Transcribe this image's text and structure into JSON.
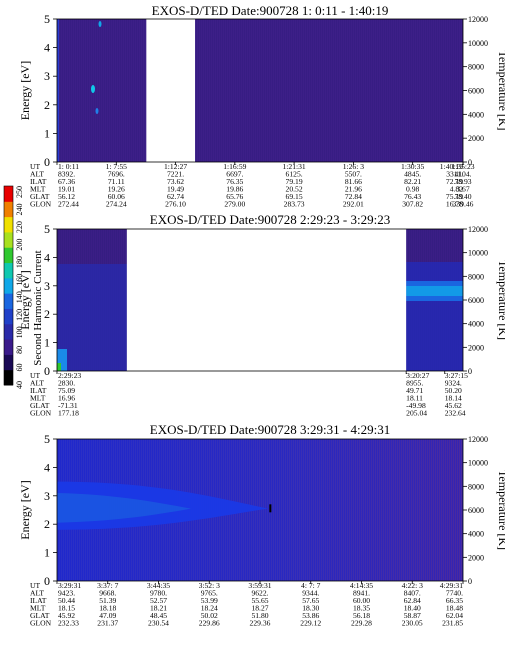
{
  "energy_label": "Energy [eV]",
  "temperature_label": "Temperature [K]",
  "colorbar": {
    "label": "Second Harmonic Current",
    "ticks": [
      "40",
      "60",
      "80",
      "100",
      "120",
      "140",
      "160",
      "180",
      "200",
      "220",
      "240",
      "250"
    ],
    "colors": [
      "#000000",
      "#1a0a55",
      "#3a1a8a",
      "#2a2aa8",
      "#2040c8",
      "#1a66e0",
      "#10a8e8",
      "#10c8b0",
      "#30c830",
      "#a8e020",
      "#f0e000",
      "#f08000",
      "#e80000"
    ]
  },
  "ephemeris_labels": [
    "UT",
    "ALT",
    "ILAT",
    "MLT",
    "GLAT",
    "GLON"
  ],
  "chart_data": [
    {
      "type": "heatmap",
      "title": "EXOS-D/TED   Date:900728   1: 0:11 - 1:40:19",
      "ylim": [
        0,
        5
      ],
      "y2lim": [
        0,
        12000
      ],
      "yticks": [
        0,
        1,
        2,
        3,
        4,
        5
      ],
      "y2ticks": [
        0,
        2000,
        4000,
        6000,
        8000,
        10000,
        12000
      ],
      "data_gaps": [
        [
          0.22,
          0.34
        ]
      ],
      "ephemeris": {
        "x_frac": [
          0.0,
          0.146,
          0.292,
          0.438,
          0.584,
          0.73,
          0.876,
          1.0,
          1.0
        ],
        "UT": [
          "1: 0:11",
          "1: 7:55",
          "1:12:27",
          "1:16:59",
          "1:21:31",
          "1:26: 3",
          "1:30:35",
          "1:35:23",
          "1:40:19"
        ],
        "ALT": [
          "8392.",
          "7696.",
          "7221.",
          "6697.",
          "6125.",
          "5507.",
          "4845.",
          "4104.",
          "3311."
        ],
        "ILAT": [
          "67.36",
          "71.11",
          "73.62",
          "76.35",
          "79.19",
          "81.66",
          "82.21",
          "78.93",
          "72.19"
        ],
        "MLT": [
          "19.01",
          "19.26",
          "19.49",
          "19.86",
          "20.52",
          "21.96",
          "0.98",
          "3.67",
          "4.82"
        ],
        "GLAT": [
          "56.12",
          "60.06",
          "62.74",
          "65.76",
          "69.15",
          "72.84",
          "76.43",
          "78.40",
          "75.19"
        ],
        "GLON": [
          "272.44",
          "274.24",
          "276.10",
          "279.00",
          "283.73",
          "292.01",
          "307.82",
          "339.46",
          "16.78"
        ]
      }
    },
    {
      "type": "heatmap",
      "title": "EXOS-D/TED   Date:900728   2:29:23 - 3:29:23",
      "ylim": [
        0,
        5
      ],
      "y2lim": [
        0,
        12000
      ],
      "yticks": [
        0,
        1,
        2,
        3,
        4,
        5
      ],
      "y2ticks": [
        0,
        2000,
        4000,
        6000,
        8000,
        10000,
        12000
      ],
      "data_gaps": [
        [
          0.172,
          0.86
        ]
      ],
      "ephemeris": {
        "x_frac": [
          0.0,
          0.86,
          0.955
        ],
        "UT": [
          "2:29:23",
          "3:20:27",
          "3:27:15"
        ],
        "ALT": [
          "2830.",
          "8955.",
          "9324."
        ],
        "ILAT": [
          "75.09",
          "49.71",
          "50.20"
        ],
        "MLT": [
          "16.96",
          "18.11",
          "18.14"
        ],
        "GLAT": [
          "-71.31",
          "-49.98",
          "45.62"
        ],
        "GLON": [
          "177.18",
          "205.04",
          "232.64"
        ]
      }
    },
    {
      "type": "heatmap",
      "title": "EXOS-D/TED   Date:900728   3:29:31 - 4:29:31",
      "ylim": [
        0,
        5
      ],
      "y2lim": [
        0,
        12000
      ],
      "yticks": [
        0,
        1,
        2,
        3,
        4,
        5
      ],
      "y2ticks": [
        0,
        2000,
        4000,
        6000,
        8000,
        10000,
        12000
      ],
      "data_gaps": [],
      "ephemeris": {
        "x_frac": [
          0.0,
          0.125,
          0.25,
          0.375,
          0.5,
          0.625,
          0.75,
          0.875,
          1.0
        ],
        "UT": [
          "3:29:31",
          "3:37: 7",
          "3:44:35",
          "3:52: 3",
          "3:59:31",
          "4: 7: 7",
          "4:14:35",
          "4:22: 3",
          "4:29:31"
        ],
        "ALT": [
          "9423.",
          "9668.",
          "9780.",
          "9765.",
          "9622.",
          "9344.",
          "8941.",
          "8407.",
          "7740."
        ],
        "ILAT": [
          "50.44",
          "51.39",
          "52.57",
          "53.99",
          "55.65",
          "57.65",
          "60.00",
          "62.84",
          "66.35"
        ],
        "MLT": [
          "18.15",
          "18.18",
          "18.21",
          "18.24",
          "18.27",
          "18.30",
          "18.35",
          "18.40",
          "18.48"
        ],
        "GLAT": [
          "45.92",
          "47.09",
          "48.45",
          "50.02",
          "51.80",
          "53.86",
          "56.18",
          "58.87",
          "62.04"
        ],
        "GLON": [
          "232.33",
          "231.37",
          "230.54",
          "229.86",
          "229.36",
          "229.12",
          "229.28",
          "230.05",
          "231.85"
        ]
      }
    }
  ]
}
